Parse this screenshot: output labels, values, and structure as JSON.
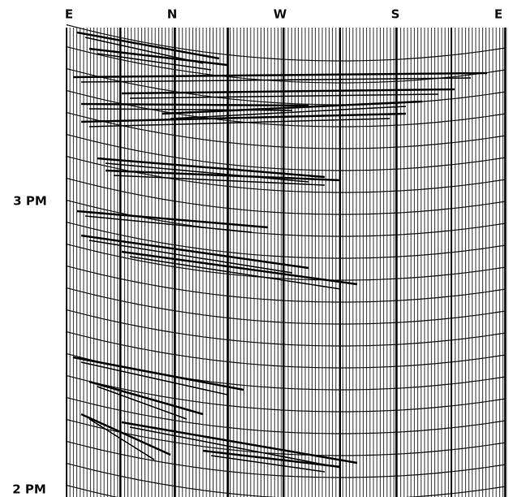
{
  "x_labels": [
    "E",
    "N",
    "W",
    "S",
    "E"
  ],
  "y_labels": [
    "3 PM",
    "2 PM"
  ]
}
